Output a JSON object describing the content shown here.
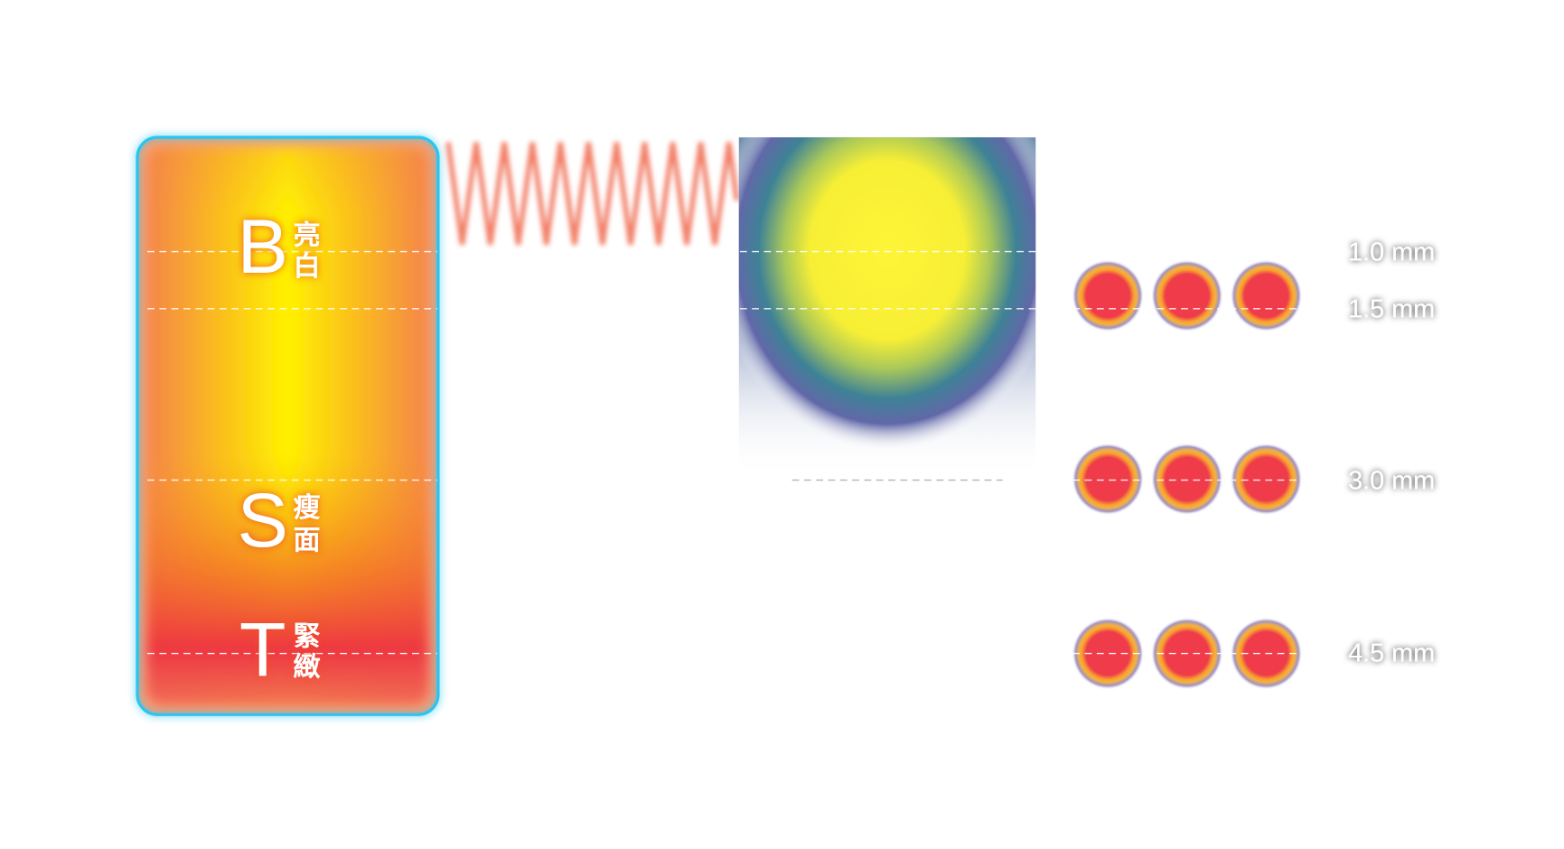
{
  "layers": [
    {
      "letter": "B",
      "label_top": "亮",
      "label_bottom": "白"
    },
    {
      "letter": "S",
      "label_top": "瘦",
      "label_bottom": "面"
    },
    {
      "letter": "T",
      "label_top": "緊",
      "label_bottom": "緻"
    }
  ],
  "depths": [
    "1.0 mm",
    "1.5 mm",
    "3.0 mm",
    "4.5 mm"
  ]
}
